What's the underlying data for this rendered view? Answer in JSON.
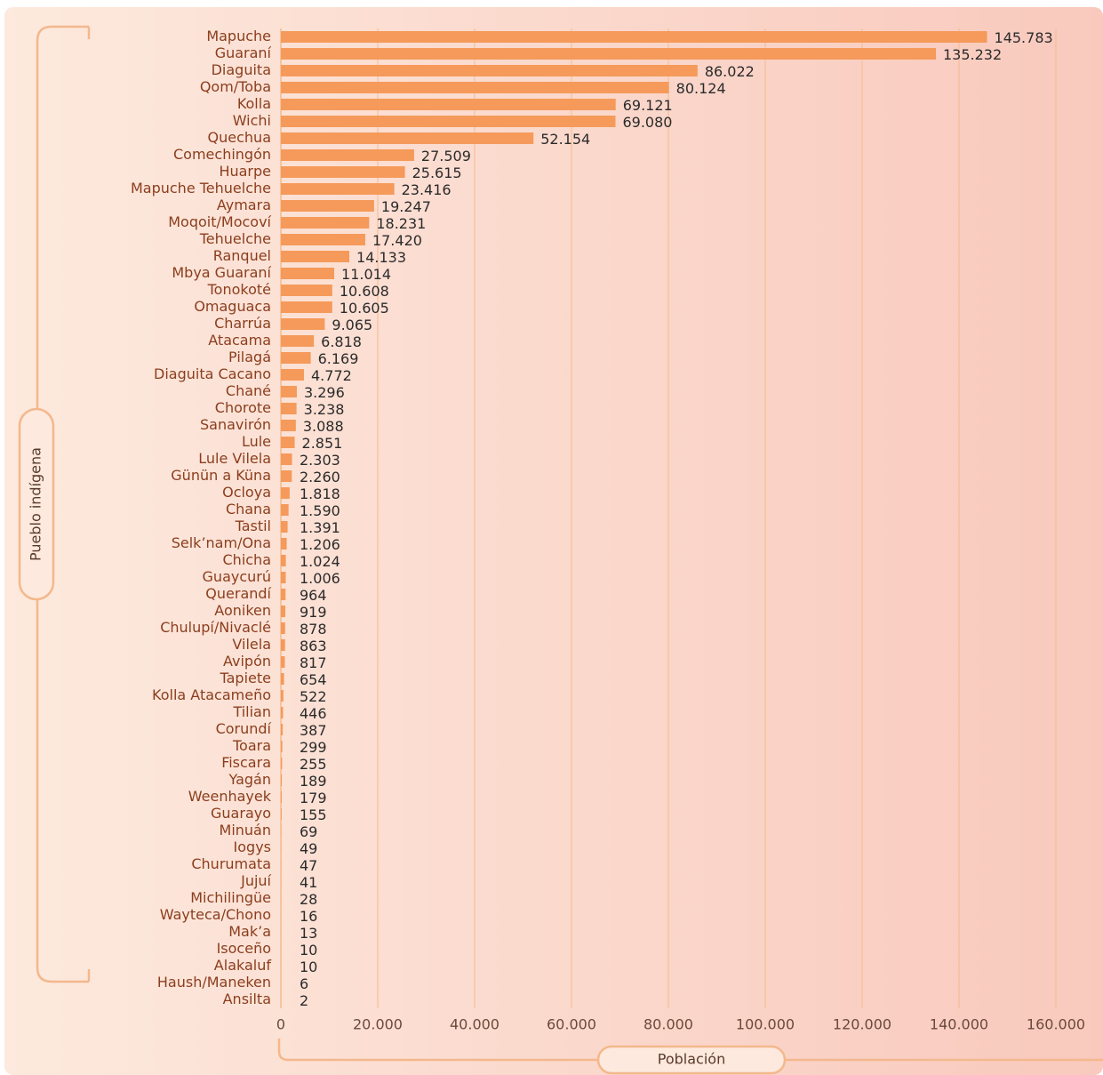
{
  "chart_data": {
    "type": "barh",
    "x_label": "Población",
    "y_label": "Pueblo indígena",
    "color": "#f59a5a",
    "grid": true,
    "xlim": [
      0,
      160000
    ],
    "xticks": [
      0,
      {
        "value": 20000,
        "label": "20.000"
      },
      {
        "value": 40000,
        "label": "40.000"
      },
      {
        "value": 60000,
        "label": "60.000"
      },
      {
        "value": 80000,
        "label": "80.000"
      },
      {
        "value": 100000,
        "label": "100.000"
      },
      {
        "value": 120000,
        "label": "120.000"
      },
      {
        "value": 140000,
        "label": "140.000"
      },
      {
        "value": 160000,
        "label": "160.000"
      }
    ],
    "categories": [
      "Mapuche",
      "Guaraní",
      "Diaguita",
      "Qom/Toba",
      "Kolla",
      "Wichi",
      "Quechua",
      "Comechingón",
      "Huarpe",
      "Mapuche Tehuelche",
      "Aymara",
      "Moqoit/Mocoví",
      "Tehuelche",
      "Ranquel",
      "Mbya Guaraní",
      "Tonokoté",
      "Omaguaca",
      "Charrúa",
      "Atacama",
      "Pilagá",
      "Diaguita Cacano",
      "Chané",
      "Chorote",
      "Sanavirón",
      "Lule",
      "Lule Vilela",
      "Günün a Küna",
      "Ocloya",
      "Chana",
      "Tastil",
      "Selk’nam/Ona",
      "Chicha",
      "Guaycurú",
      "Querandí",
      "Aoniken",
      "Chulupí/Nivaclé",
      "Vilela",
      "Avipón",
      "Tapiete",
      "Kolla Atacameño",
      "Tilian",
      "Corundí",
      "Toara",
      "Fiscara",
      "Yagán",
      "Weenhayek",
      "Guarayo",
      "Minuán",
      "Iogys",
      "Churumata",
      "Jujuí",
      "Michilingüe",
      "Wayteca/Chono",
      "Mak’a",
      "Isoceño",
      "Alakaluf",
      "Haush/Maneken",
      "Ansilta"
    ],
    "values": [
      145783,
      135232,
      86022,
      80124,
      69121,
      69080,
      52154,
      27509,
      25615,
      23416,
      19247,
      18231,
      17420,
      14133,
      11014,
      10608,
      10605,
      9065,
      6818,
      6169,
      4772,
      3296,
      3238,
      3088,
      2851,
      2303,
      2260,
      1818,
      1590,
      1391,
      1206,
      1024,
      1006,
      964,
      919,
      878,
      863,
      817,
      654,
      522,
      446,
      387,
      299,
      255,
      189,
      179,
      155,
      69,
      49,
      47,
      41,
      28,
      16,
      13,
      10,
      10,
      6,
      2
    ],
    "value_labels": [
      "145.783",
      "135.232",
      "86.022",
      "80.124",
      "69.121",
      "69.080",
      "52.154",
      "27.509",
      "25.615",
      "23.416",
      "19.247",
      "18.231",
      "17.420",
      "14.133",
      "11.014",
      "10.608",
      "10.605",
      "9.065",
      "6.818",
      "6.169",
      "4.772",
      "3.296",
      "3.238",
      "3.088",
      "2.851",
      "2.303",
      "2.260",
      "1.818",
      "1.590",
      "1.391",
      "1.206",
      "1.024",
      "1.006",
      "964",
      "919",
      "878",
      "863",
      "817",
      "654",
      "522",
      "446",
      "387",
      "299",
      "255",
      "189",
      "179",
      "155",
      "69",
      "49",
      "47",
      "41",
      "28",
      "16",
      "13",
      "10",
      "10",
      "6",
      "2"
    ]
  }
}
